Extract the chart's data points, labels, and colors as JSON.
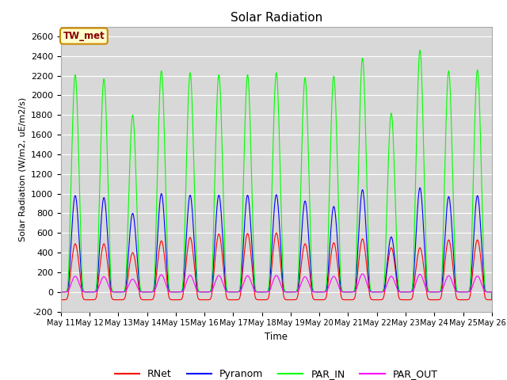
{
  "title": "Solar Radiation",
  "ylabel": "Solar Radiation (W/m2, uE/m2/s)",
  "xlabel": "Time",
  "ylim": [
    -200,
    2700
  ],
  "yticks": [
    -200,
    0,
    200,
    400,
    600,
    800,
    1000,
    1200,
    1400,
    1600,
    1800,
    2000,
    2200,
    2400,
    2600
  ],
  "n_days": 15,
  "start_day": 11,
  "end_day": 26,
  "colors": {
    "RNet": "#ff0000",
    "Pyranom": "#0000ff",
    "PAR_IN": "#00ff00",
    "PAR_OUT": "#ff00ff"
  },
  "annotation_text": "TW_met",
  "annotation_bg": "#ffffcc",
  "annotation_border": "#cc8800",
  "bg_color": "#d8d8d8",
  "grid_color": "#ffffff",
  "title_fontsize": 11,
  "par_in_peaks": [
    2210,
    2170,
    1800,
    2250,
    2230,
    2210,
    2210,
    2230,
    2180,
    2195,
    2380,
    1820,
    2460,
    2250,
    2260
  ],
  "pyranom_peaks": [
    980,
    960,
    800,
    1000,
    985,
    985,
    985,
    990,
    925,
    870,
    1040,
    560,
    1060,
    970,
    980
  ],
  "rnet_peaks": [
    490,
    490,
    400,
    520,
    555,
    590,
    595,
    600,
    490,
    500,
    540,
    450,
    450,
    530,
    530
  ],
  "par_out_peaks": [
    160,
    155,
    130,
    175,
    170,
    168,
    165,
    168,
    155,
    158,
    185,
    160,
    180,
    165,
    162
  ],
  "rnet_night": -80,
  "pts_per_day": 200
}
